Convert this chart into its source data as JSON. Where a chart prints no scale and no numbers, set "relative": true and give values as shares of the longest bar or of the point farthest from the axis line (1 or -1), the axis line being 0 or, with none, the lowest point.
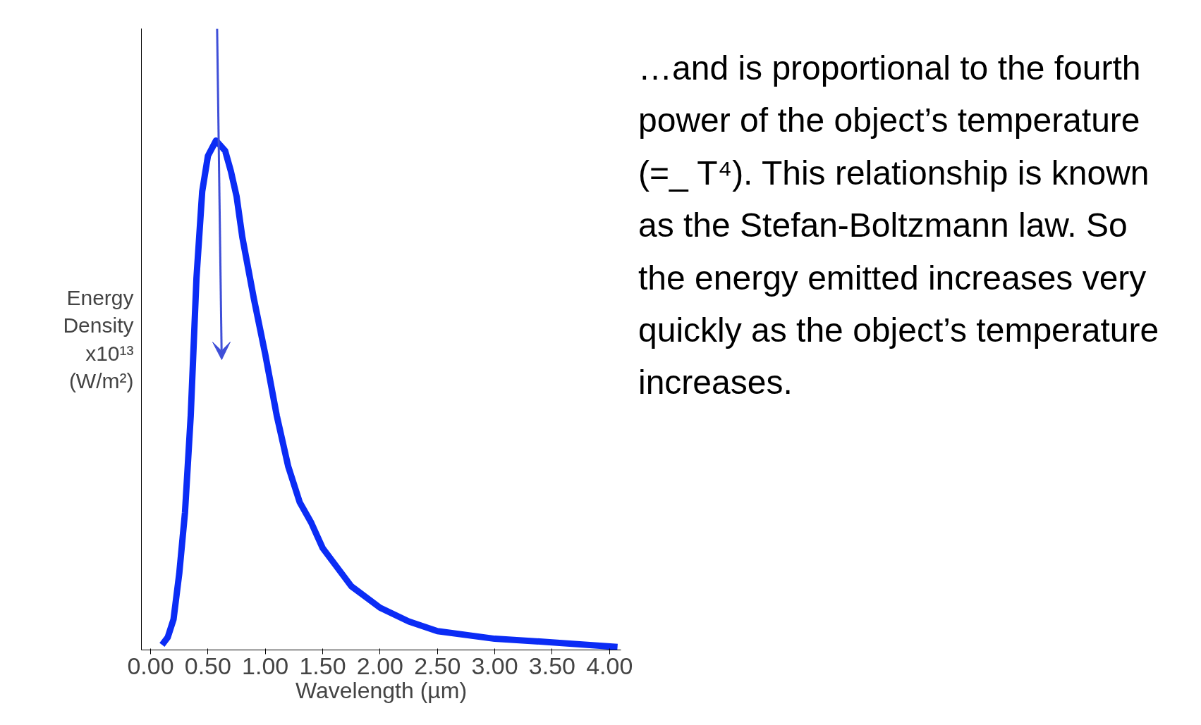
{
  "chart_data": {
    "type": "line",
    "relative": true,
    "xlabel": "Wavelength (µm)",
    "ylabel": "Energy Density x10¹³ (W/m²)",
    "xlim": [
      -0.08,
      4.1
    ],
    "xticks": [
      {
        "value": 0,
        "label": "0.00"
      },
      {
        "value": 0.5,
        "label": "0.50"
      },
      {
        "value": 1,
        "label": "1.00"
      },
      {
        "value": 1.5,
        "label": "1.50"
      },
      {
        "value": 2,
        "label": "2.00"
      },
      {
        "value": 2.5,
        "label": "2.50"
      },
      {
        "value": 3,
        "label": "3.00"
      },
      {
        "value": 3.5,
        "label": "3.50"
      },
      {
        "value": 4,
        "label": "4.00"
      }
    ],
    "grid": false,
    "marker": "none",
    "line_style": "solid",
    "annotations": [
      "…and is proportional to the fourth power of the object’s temperature (=_ T⁴). This relationship is known as the Stefan-Boltzmann law.  So the energy emitted increases very quickly as the object’s temperature increases."
    ],
    "series": [
      {
        "color": "#0b2cf5",
        "x": [
          0.1,
          0.15,
          0.2,
          0.25,
          0.3,
          0.35,
          0.4,
          0.45,
          0.5,
          0.57,
          0.65,
          0.7,
          0.75,
          0.8,
          0.9,
          1.0,
          1.1,
          1.2,
          1.3,
          1.4,
          1.5,
          1.75,
          2.0,
          2.25,
          2.5,
          3.0,
          3.5,
          4.07
        ],
        "values": [
          0.01,
          0.025,
          0.06,
          0.15,
          0.27,
          0.46,
          0.73,
          0.9,
          0.97,
          1.0,
          0.98,
          0.94,
          0.89,
          0.81,
          0.69,
          0.58,
          0.46,
          0.36,
          0.29,
          0.25,
          0.2,
          0.125,
          0.083,
          0.056,
          0.037,
          0.022,
          0.015,
          0.006
        ]
      }
    ]
  }
}
